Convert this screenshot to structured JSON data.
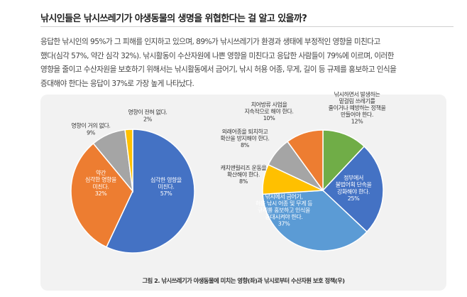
{
  "heading": "낚시인들은 낚시쓰레기가 야생동물의 생명을 위협한다는 걸 알고 있을까?",
  "paragraph_lines": [
    "응답한 낚시인의 95%가 그 피해를 인지하고 있으며, 89%가 낚시쓰레기가 환경과 생태에 부정적인 영향을 미친다고",
    "했다(심각 57%, 약간 심각 32%). 낚시활동이 수산자원에 나쁜 영향을 미친다고 응답한 사람들이 79%에 이르며, 이러한",
    "영향을 줄이고 수산자원을 보호하기 위해서는 낚시활동에서 금어기, 낚시 허용 어종, 무게, 길이 등 규제를 홍보하고 인식을",
    "증대해야 한다는 응답이 37%로 가장 높게 나타났다."
  ],
  "caption": "그림 2. 낚시쓰레기가 야생동물에 미치는 영향(좌)과 낚시로부터 수산자원 보호 정책(우)",
  "chart_data": [
    {
      "type": "pie",
      "title": "",
      "slices": [
        {
          "label": [
            "심각한 영향을",
            "미친다."
          ],
          "value": 57,
          "display": "57%",
          "color": "#4472c4"
        },
        {
          "label": [
            "약간",
            "심각한 영향을",
            "미친다."
          ],
          "value": 32,
          "display": "32%",
          "color": "#ed7d31"
        },
        {
          "label": [
            "영향이 거의 없다."
          ],
          "value": 9,
          "display": "9%",
          "color": "#a5a5a5"
        },
        {
          "label": [
            "영향이 전혀 없다."
          ],
          "value": 2,
          "display": "2%",
          "color": "#ffc000"
        }
      ]
    },
    {
      "type": "pie",
      "title": "",
      "slices": [
        {
          "label": [
            "낚시하면서 발생하는",
            "밑걸림 쓰레기를",
            "줄이거나 예방하는 정책을",
            "만들어야 한다."
          ],
          "value": 12,
          "display": "12%",
          "color": "#70ad47"
        },
        {
          "label": [
            "정부에서",
            "불법어획 단속을",
            "강화해야 한다."
          ],
          "value": 25,
          "display": "25%",
          "color": "#4472c4"
        },
        {
          "label": [
            "낚시에서 금어기,",
            "허용 낚시 어종 및 무게 등",
            "규제를 홍보하고 인식을",
            "증대시켜야 한다."
          ],
          "value": 37,
          "display": "37%",
          "color": "#5b9bd5"
        },
        {
          "label": [
            "캐치앤릴리즈 운동을",
            "확산해야 한다."
          ],
          "value": 8,
          "display": "8%",
          "color": "#ffc000"
        },
        {
          "label": [
            "외래어종을 퇴치하고",
            "확산을 방지해야 한다."
          ],
          "value": 8,
          "display": "8%",
          "color": "#a5a5a5"
        },
        {
          "label": [
            "치어방류 사업을",
            "지속적으로 해야 한다."
          ],
          "value": 10,
          "display": "10%",
          "color": "#ed7d31"
        }
      ]
    }
  ]
}
